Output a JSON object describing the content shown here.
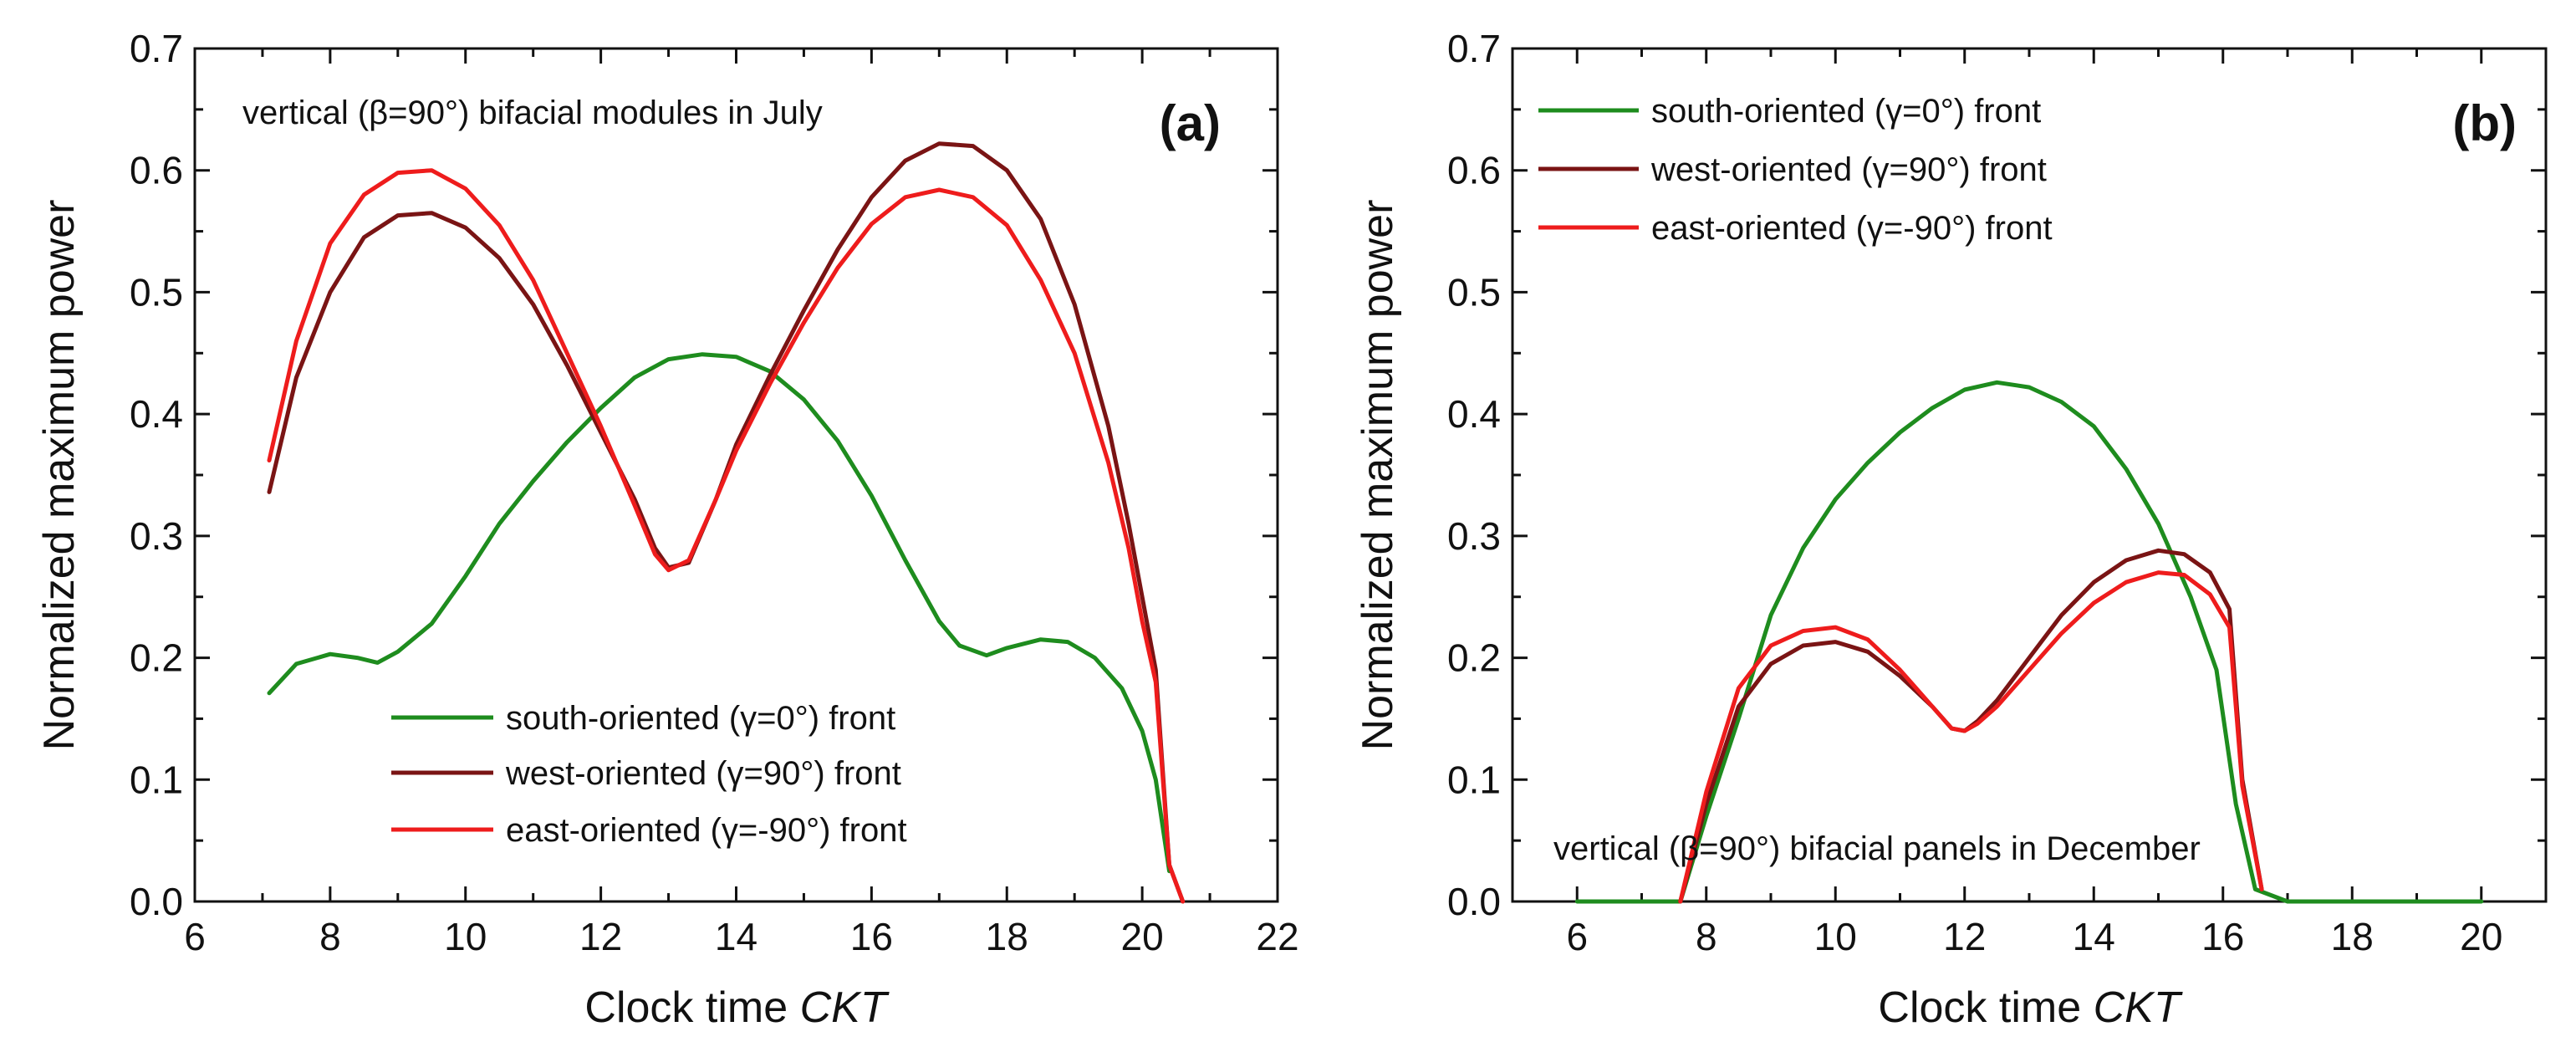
{
  "chart_data": [
    {
      "type": "line",
      "panel": "(a)",
      "annotation": "vertical (β=90°) bifacial modules in July",
      "xlabel": "Clock time",
      "xlabel_italic": "CKT",
      "ylabel": "Normalized maximum power",
      "xlim": [
        6,
        22
      ],
      "ylim": [
        0,
        0.7
      ],
      "xticks": [
        "6",
        "8",
        "10",
        "12",
        "14",
        "16",
        "18",
        "20",
        "22"
      ],
      "yticks": [
        "0.0",
        "0.1",
        "0.2",
        "0.3",
        "0.4",
        "0.5",
        "0.6",
        "0.7"
      ],
      "legend_position": "bottom-center",
      "series": [
        {
          "name": "south-oriented (γ=0°) front",
          "color": "#1e8c1e",
          "x": [
            7.1,
            7.5,
            8.0,
            8.4,
            8.7,
            9.0,
            9.5,
            10.0,
            10.5,
            11.0,
            11.5,
            12.0,
            12.5,
            13.0,
            13.5,
            14.0,
            14.5,
            15.0,
            15.5,
            16.0,
            16.5,
            17.0,
            17.3,
            17.7,
            18.0,
            18.5,
            18.9,
            19.3,
            19.7,
            20.0,
            20.2,
            20.4
          ],
          "y": [
            0.171,
            0.195,
            0.203,
            0.2,
            0.196,
            0.205,
            0.228,
            0.267,
            0.31,
            0.345,
            0.377,
            0.405,
            0.43,
            0.445,
            0.449,
            0.447,
            0.435,
            0.412,
            0.378,
            0.333,
            0.28,
            0.23,
            0.21,
            0.202,
            0.208,
            0.215,
            0.213,
            0.2,
            0.175,
            0.14,
            0.1,
            0.025
          ]
        },
        {
          "name": "west-oriented (γ=90°) front",
          "color": "#7a1414",
          "x": [
            7.1,
            7.5,
            8.0,
            8.5,
            9.0,
            9.5,
            10.0,
            10.5,
            11.0,
            11.5,
            12.0,
            12.5,
            12.8,
            13.0,
            13.3,
            13.7,
            14.0,
            14.5,
            15.0,
            15.5,
            16.0,
            16.5,
            17.0,
            17.5,
            18.0,
            18.5,
            19.0,
            19.5,
            19.8,
            20.0,
            20.2,
            20.4,
            20.6
          ],
          "y": [
            0.336,
            0.43,
            0.5,
            0.545,
            0.563,
            0.565,
            0.553,
            0.528,
            0.49,
            0.44,
            0.385,
            0.33,
            0.29,
            0.274,
            0.278,
            0.33,
            0.375,
            0.432,
            0.485,
            0.535,
            0.578,
            0.608,
            0.622,
            0.62,
            0.6,
            0.56,
            0.49,
            0.39,
            0.31,
            0.25,
            0.19,
            0.03,
            0.0
          ]
        },
        {
          "name": "east-oriented (γ=-90°) front",
          "color": "#ee1c1c",
          "x": [
            7.1,
            7.5,
            8.0,
            8.5,
            9.0,
            9.5,
            10.0,
            10.5,
            11.0,
            11.5,
            12.0,
            12.5,
            12.8,
            13.0,
            13.3,
            13.7,
            14.0,
            14.5,
            15.0,
            15.5,
            16.0,
            16.5,
            17.0,
            17.5,
            18.0,
            18.5,
            19.0,
            19.5,
            19.8,
            20.0,
            20.2,
            20.4,
            20.6
          ],
          "y": [
            0.362,
            0.46,
            0.54,
            0.58,
            0.598,
            0.6,
            0.585,
            0.555,
            0.51,
            0.45,
            0.39,
            0.325,
            0.285,
            0.272,
            0.28,
            0.33,
            0.37,
            0.425,
            0.475,
            0.52,
            0.556,
            0.578,
            0.584,
            0.578,
            0.555,
            0.51,
            0.45,
            0.36,
            0.29,
            0.23,
            0.18,
            0.03,
            0.0
          ]
        }
      ]
    },
    {
      "type": "line",
      "panel": "(b)",
      "annotation": "vertical (β=90°) bifacial panels in December",
      "xlabel": "Clock time",
      "xlabel_italic": "CKT",
      "ylabel": "Normalized maximum power",
      "xlim": [
        5,
        21
      ],
      "ylim": [
        0,
        0.7
      ],
      "xticks": [
        "6",
        "8",
        "10",
        "12",
        "14",
        "16",
        "18",
        "20"
      ],
      "yticks": [
        "0.0",
        "0.1",
        "0.2",
        "0.3",
        "0.4",
        "0.5",
        "0.6",
        "0.7"
      ],
      "legend_position": "top-left",
      "series": [
        {
          "name": "south-oriented (γ=0°) front",
          "color": "#1e8c1e",
          "x": [
            6.0,
            7.0,
            7.6,
            8.0,
            8.5,
            9.0,
            9.5,
            10.0,
            10.5,
            11.0,
            11.5,
            12.0,
            12.5,
            13.0,
            13.5,
            14.0,
            14.5,
            15.0,
            15.5,
            15.9,
            16.2,
            16.5,
            17.0,
            18.0,
            20.0
          ],
          "y": [
            0.0,
            0.0,
            0.0,
            0.07,
            0.15,
            0.235,
            0.29,
            0.33,
            0.36,
            0.385,
            0.405,
            0.42,
            0.426,
            0.422,
            0.41,
            0.39,
            0.355,
            0.31,
            0.25,
            0.19,
            0.08,
            0.01,
            0.0,
            0.0,
            0.0
          ]
        },
        {
          "name": "west-oriented (γ=90°) front",
          "color": "#7a1414",
          "x": [
            7.6,
            8.0,
            8.5,
            9.0,
            9.5,
            10.0,
            10.5,
            11.0,
            11.5,
            11.8,
            12.0,
            12.2,
            12.5,
            13.0,
            13.5,
            14.0,
            14.5,
            15.0,
            15.4,
            15.8,
            16.1,
            16.3,
            16.6
          ],
          "y": [
            0.0,
            0.08,
            0.16,
            0.195,
            0.21,
            0.213,
            0.205,
            0.185,
            0.16,
            0.142,
            0.14,
            0.148,
            0.165,
            0.2,
            0.235,
            0.262,
            0.28,
            0.288,
            0.285,
            0.27,
            0.24,
            0.1,
            0.01
          ]
        },
        {
          "name": "east-oriented (γ=-90°) front",
          "color": "#ee1c1c",
          "x": [
            7.6,
            8.0,
            8.5,
            9.0,
            9.5,
            10.0,
            10.5,
            11.0,
            11.5,
            11.8,
            12.0,
            12.2,
            12.5,
            13.0,
            13.5,
            14.0,
            14.5,
            15.0,
            15.4,
            15.8,
            16.1,
            16.3,
            16.6
          ],
          "y": [
            0.0,
            0.09,
            0.175,
            0.21,
            0.222,
            0.225,
            0.215,
            0.19,
            0.16,
            0.142,
            0.14,
            0.146,
            0.16,
            0.19,
            0.22,
            0.245,
            0.262,
            0.27,
            0.268,
            0.252,
            0.225,
            0.095,
            0.01
          ]
        }
      ]
    }
  ]
}
